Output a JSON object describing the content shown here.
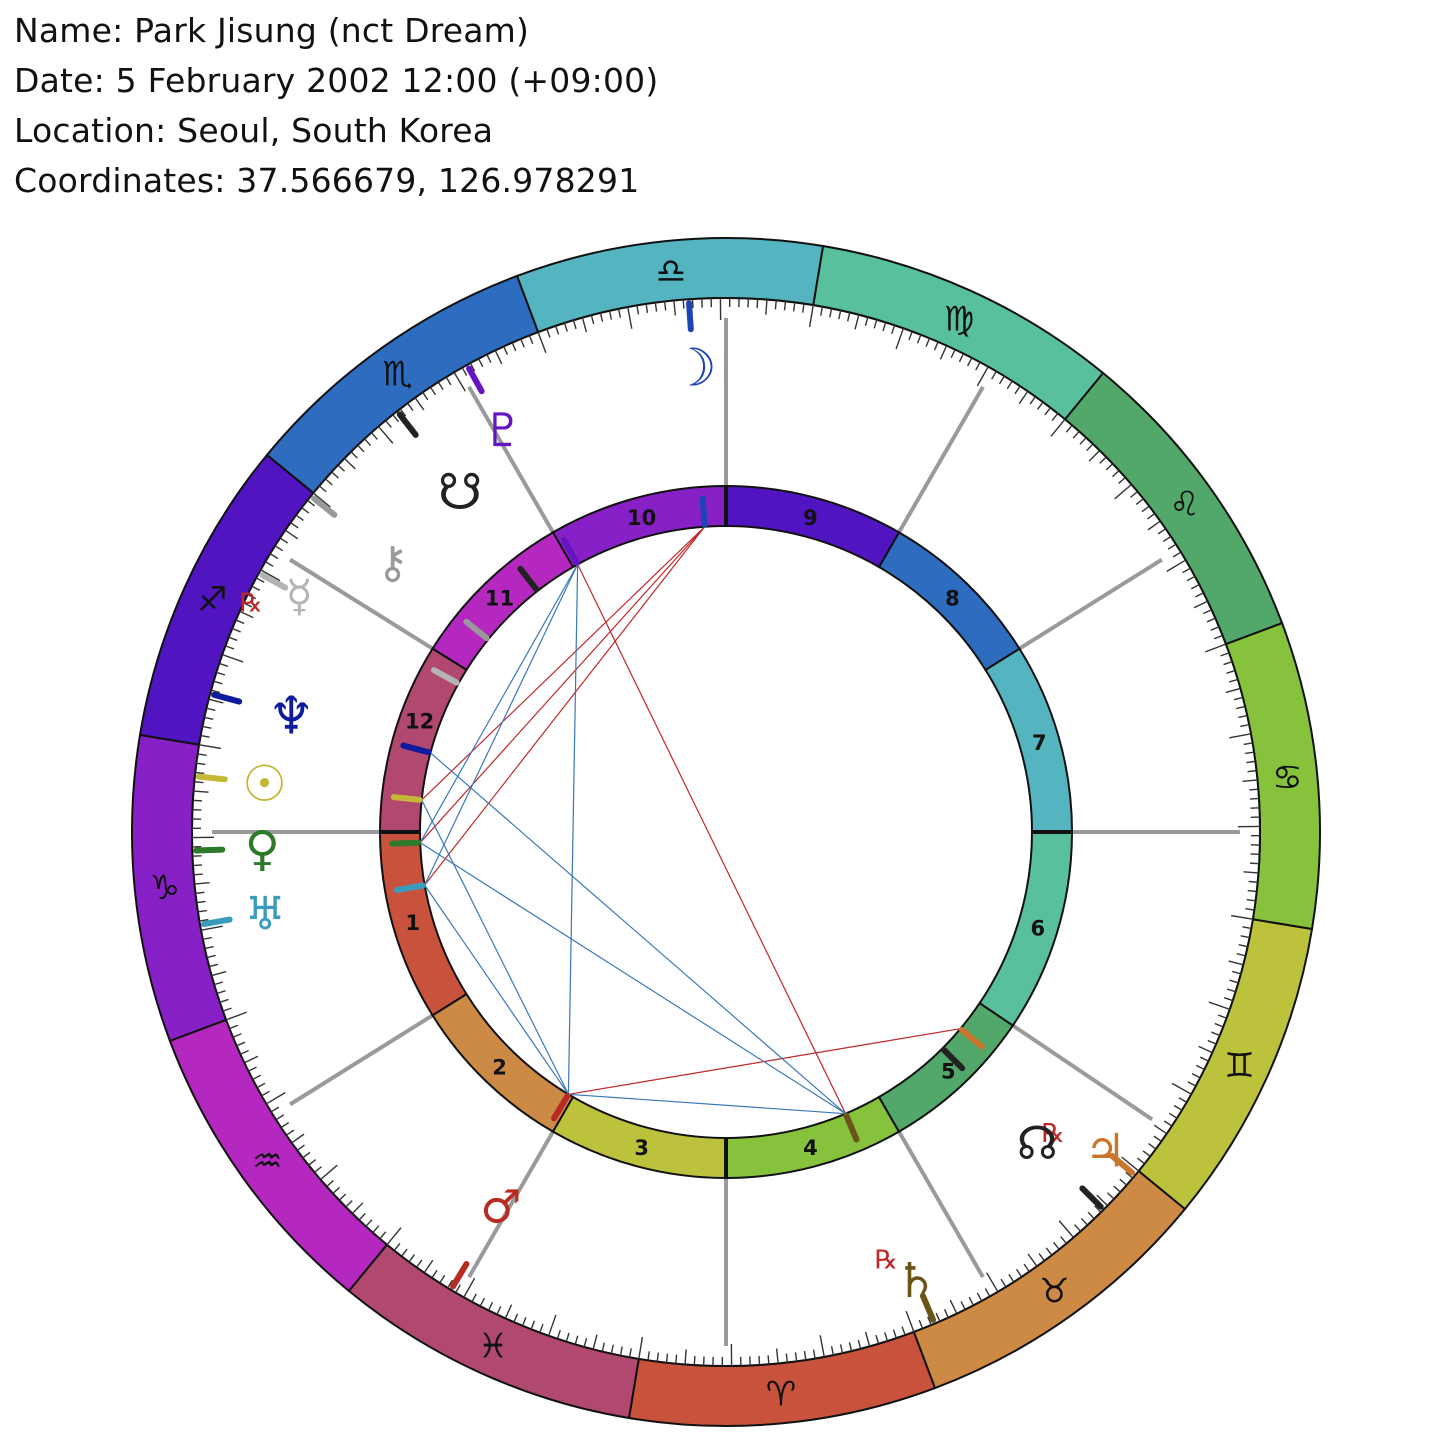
{
  "header": {
    "name_line": "Name: Park Jisung (nct Dream)",
    "date_line": "Date: 5 February 2002 12:00 (+09:00)",
    "location_line": "Location: Seoul, South Korea",
    "coords_line": "Coordinates: 37.566679, 126.978291"
  },
  "signs": [
    {
      "name": "Aries",
      "symbol": "♈",
      "color": "#c8523c"
    },
    {
      "name": "Taurus",
      "symbol": "♉",
      "color": "#cc8a45"
    },
    {
      "name": "Gemini",
      "symbol": "♊",
      "color": "#bcc23c"
    },
    {
      "name": "Cancer",
      "symbol": "♋",
      "color": "#86c23c"
    },
    {
      "name": "Leo",
      "symbol": "♌",
      "color": "#52a86a"
    },
    {
      "name": "Virgo",
      "symbol": "♍",
      "color": "#58c09c"
    },
    {
      "name": "Libra",
      "symbol": "♎",
      "color": "#54b4c0"
    },
    {
      "name": "Scorpio",
      "symbol": "♏",
      "color": "#2e6cc0"
    },
    {
      "name": "Sagittarius",
      "symbol": "♐",
      "color": "#5014c0"
    },
    {
      "name": "Capricorn",
      "symbol": "♑",
      "color": "#8820c8"
    },
    {
      "name": "Aquarius",
      "symbol": "♒",
      "color": "#b428c0"
    },
    {
      "name": "Pisces",
      "symbol": "♓",
      "color": "#b04870"
    }
  ],
  "houses": [
    {
      "label": "1",
      "color": "#c8523c"
    },
    {
      "label": "2",
      "color": "#cc8a45"
    },
    {
      "label": "3",
      "color": "#bcc23c"
    },
    {
      "label": "4",
      "color": "#86c23c"
    },
    {
      "label": "5",
      "color": "#52a86a"
    },
    {
      "label": "6",
      "color": "#58c09c"
    },
    {
      "label": "7",
      "color": "#54b4c0"
    },
    {
      "label": "8",
      "color": "#2e6cc0"
    },
    {
      "label": "9",
      "color": "#5014c0"
    },
    {
      "label": "10",
      "color": "#8820c8"
    },
    {
      "label": "11",
      "color": "#b428c0"
    },
    {
      "label": "12",
      "color": "#b04870"
    }
  ],
  "planets": [
    {
      "name": "Sun",
      "glyph": "☉",
      "color": "#c4b838",
      "retro": ""
    },
    {
      "name": "Moon",
      "glyph": "☽",
      "color": "#1c44b8",
      "retro": ""
    },
    {
      "name": "Mercury",
      "glyph": "☿",
      "color": "#b4b4b4",
      "retro": "℞"
    },
    {
      "name": "Venus",
      "glyph": "♀",
      "color": "#2e7a2a",
      "retro": ""
    },
    {
      "name": "Mars",
      "glyph": "♂",
      "color": "#b82a22",
      "retro": ""
    },
    {
      "name": "Jupiter",
      "glyph": "♃",
      "color": "#c8762c",
      "retro": "℞"
    },
    {
      "name": "Saturn",
      "glyph": "♄",
      "color": "#6a5418",
      "retro": "℞"
    },
    {
      "name": "Uranus",
      "glyph": "♅",
      "color": "#3a9cbc",
      "retro": ""
    },
    {
      "name": "Neptune",
      "glyph": "♆",
      "color": "#0c1c9c",
      "retro": ""
    },
    {
      "name": "Pluto",
      "glyph": "♇",
      "color": "#6414c0",
      "retro": ""
    },
    {
      "name": "North Node",
      "glyph": "☊",
      "color": "#222222",
      "retro": ""
    },
    {
      "name": "South Node",
      "glyph": "☋",
      "color": "#222222",
      "retro": ""
    },
    {
      "name": "Chiron",
      "glyph": "⚷",
      "color": "#999999",
      "retro": ""
    }
  ],
  "aspect_colors": {
    "harmonious": "#3a78b8",
    "tense": "#c02828"
  },
  "retro_color": "#c02828"
}
